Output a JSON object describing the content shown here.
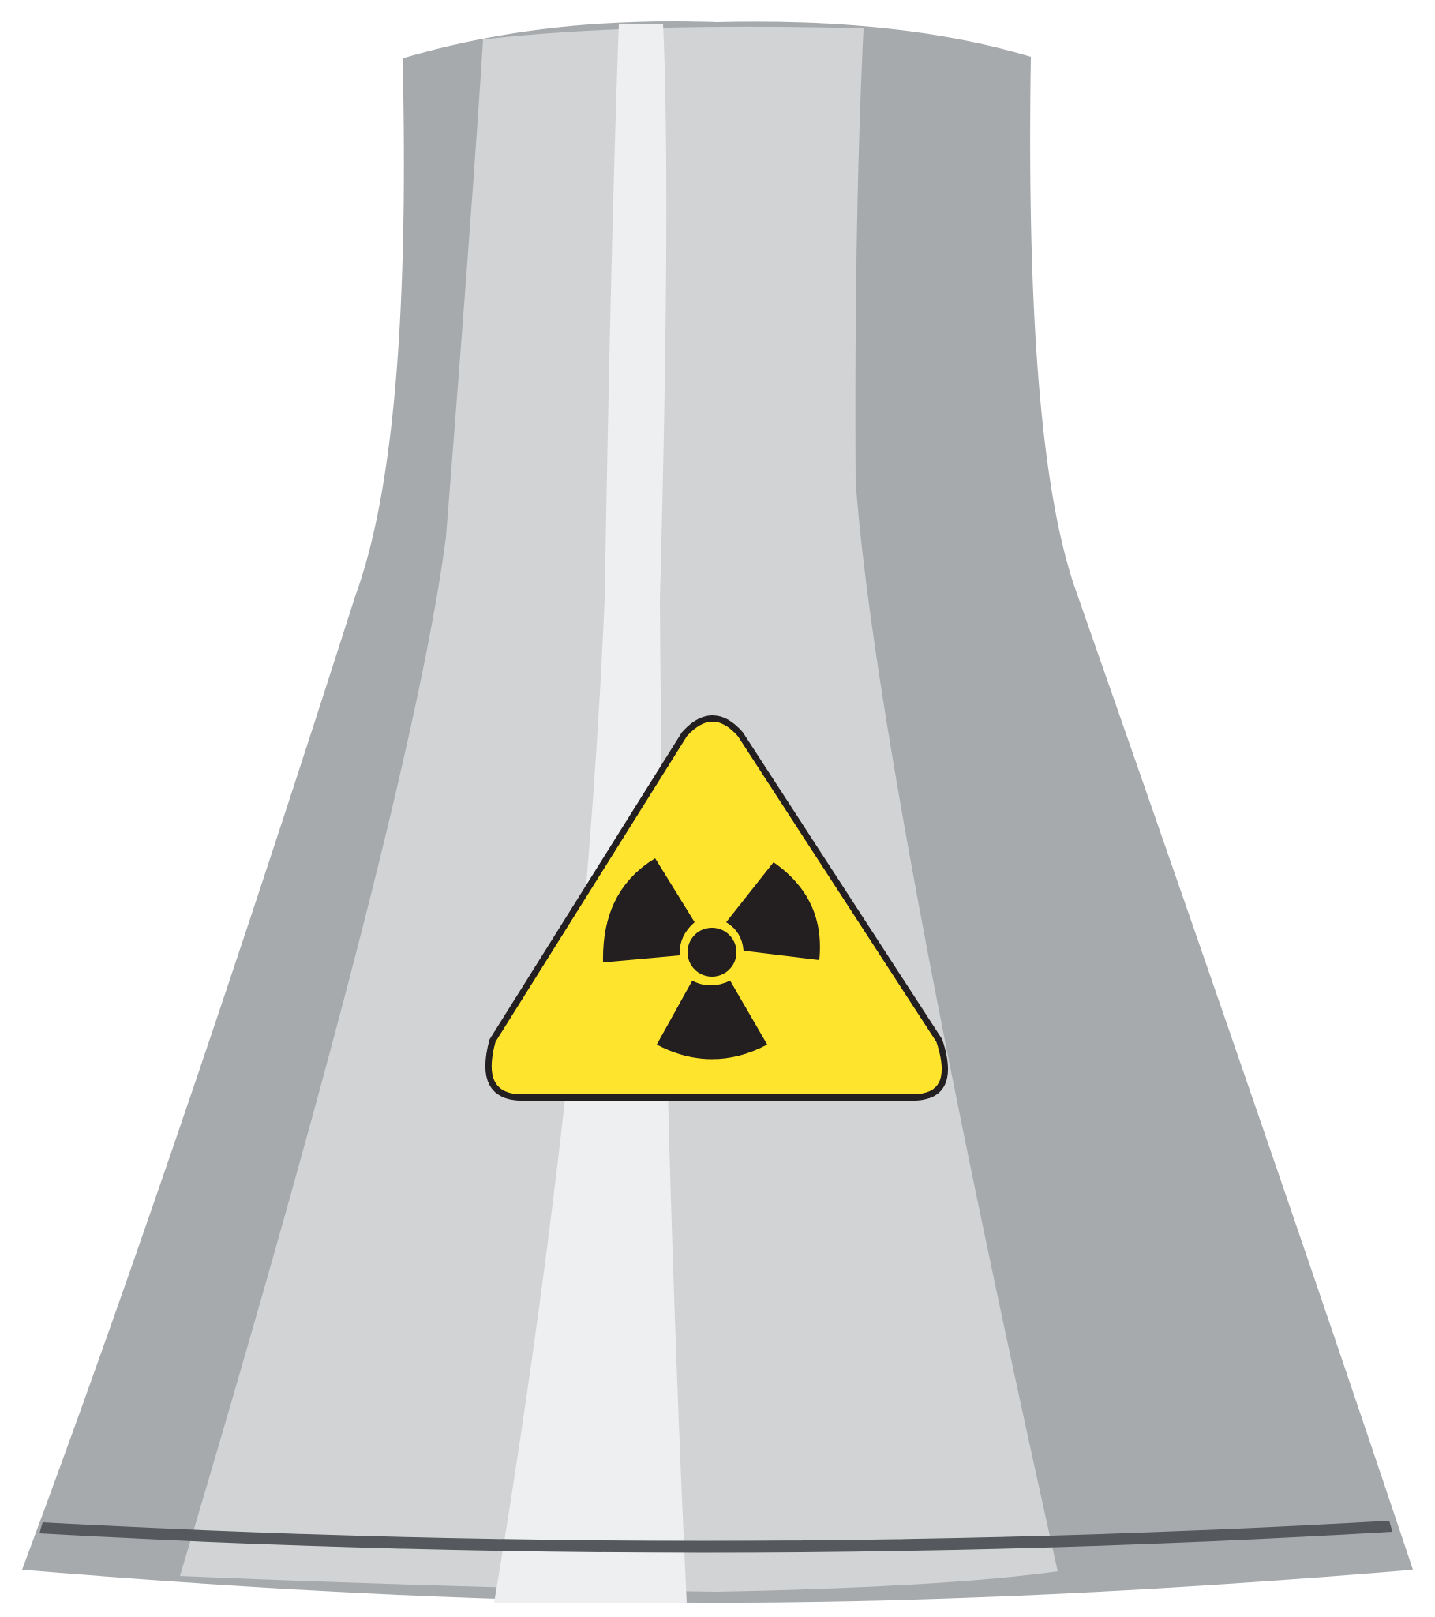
{
  "illustration": {
    "subject": "cooling-tower",
    "sign": "radiation-warning-sign",
    "colors": {
      "background": "#ffffff",
      "tower_dark": "#a7aaad",
      "tower_light": "#d1d3d5",
      "tower_highlight": "#eeeff1",
      "base_band": "#55585c",
      "sign_fill": "#ffe42e",
      "sign_border": "#231f20",
      "trefoil": "#231f20"
    },
    "icons": [
      "radiation-trefoil-icon"
    ]
  }
}
